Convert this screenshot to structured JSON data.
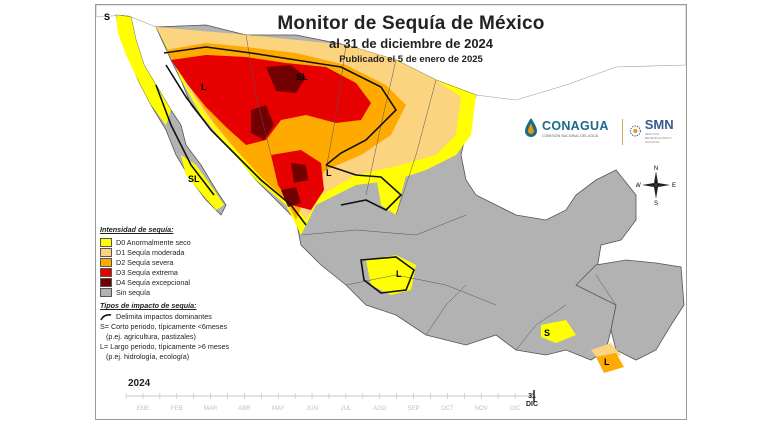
{
  "title": "Monitor de Sequía de México",
  "subtitle": "al 31 de diciembre de 2024",
  "published": "Publicado el 5 de enero de 2025",
  "logos": {
    "conagua": "CONAGUA",
    "conagua_sub": "COMISIÓN NACIONAL DEL AGUA",
    "smn": "SMN",
    "smn_sub": "SERVICIO METEOROLÓGICO NACIONAL"
  },
  "compass": {
    "n": "N",
    "s": "S",
    "e": "E",
    "w": "W"
  },
  "legend": {
    "intensity_header": "Intensidad de sequía:",
    "categories": [
      {
        "code": "D0",
        "label": "D0 Anormalmente seco",
        "color": "#ffff00"
      },
      {
        "code": "D1",
        "label": "D1 Sequía moderada",
        "color": "#fcd37f"
      },
      {
        "code": "D2",
        "label": "D2 Sequía severa",
        "color": "#ffaa00"
      },
      {
        "code": "D3",
        "label": "D3 Sequía extrema",
        "color": "#e60000"
      },
      {
        "code": "D4",
        "label": "D4 Sequía excepcional",
        "color": "#730000"
      },
      {
        "code": "none",
        "label": "Sin sequía",
        "color": "#b2b2b2"
      }
    ],
    "impact_header": "Tipos de impacto de sequía:",
    "impact_line": "Delimita impactos dominantes",
    "short_term": "S= Corto periodo, típicamente <6meses",
    "short_term_example": "(p.ej. agricultura, pastizales)",
    "long_term": "L= Largo periodo, típicamente >6 meses",
    "long_term_example": "(p.ej. hidrología, ecología)"
  },
  "map_labels": {
    "corner": "S",
    "sl_north": "SL",
    "l_sonora": "L",
    "sl_baja": "SL",
    "l_durango": "L",
    "l_central": "L",
    "s_southeast": "S",
    "l_yucatan": "L"
  },
  "timeline": {
    "year": "2024",
    "current_day": "31",
    "current_month": "DIC",
    "months": [
      "ENE",
      "FEB",
      "MAR",
      "ABR",
      "MAY",
      "JUN",
      "JUL",
      "AGO",
      "SEP",
      "OCT",
      "NOV",
      "DIC"
    ]
  }
}
